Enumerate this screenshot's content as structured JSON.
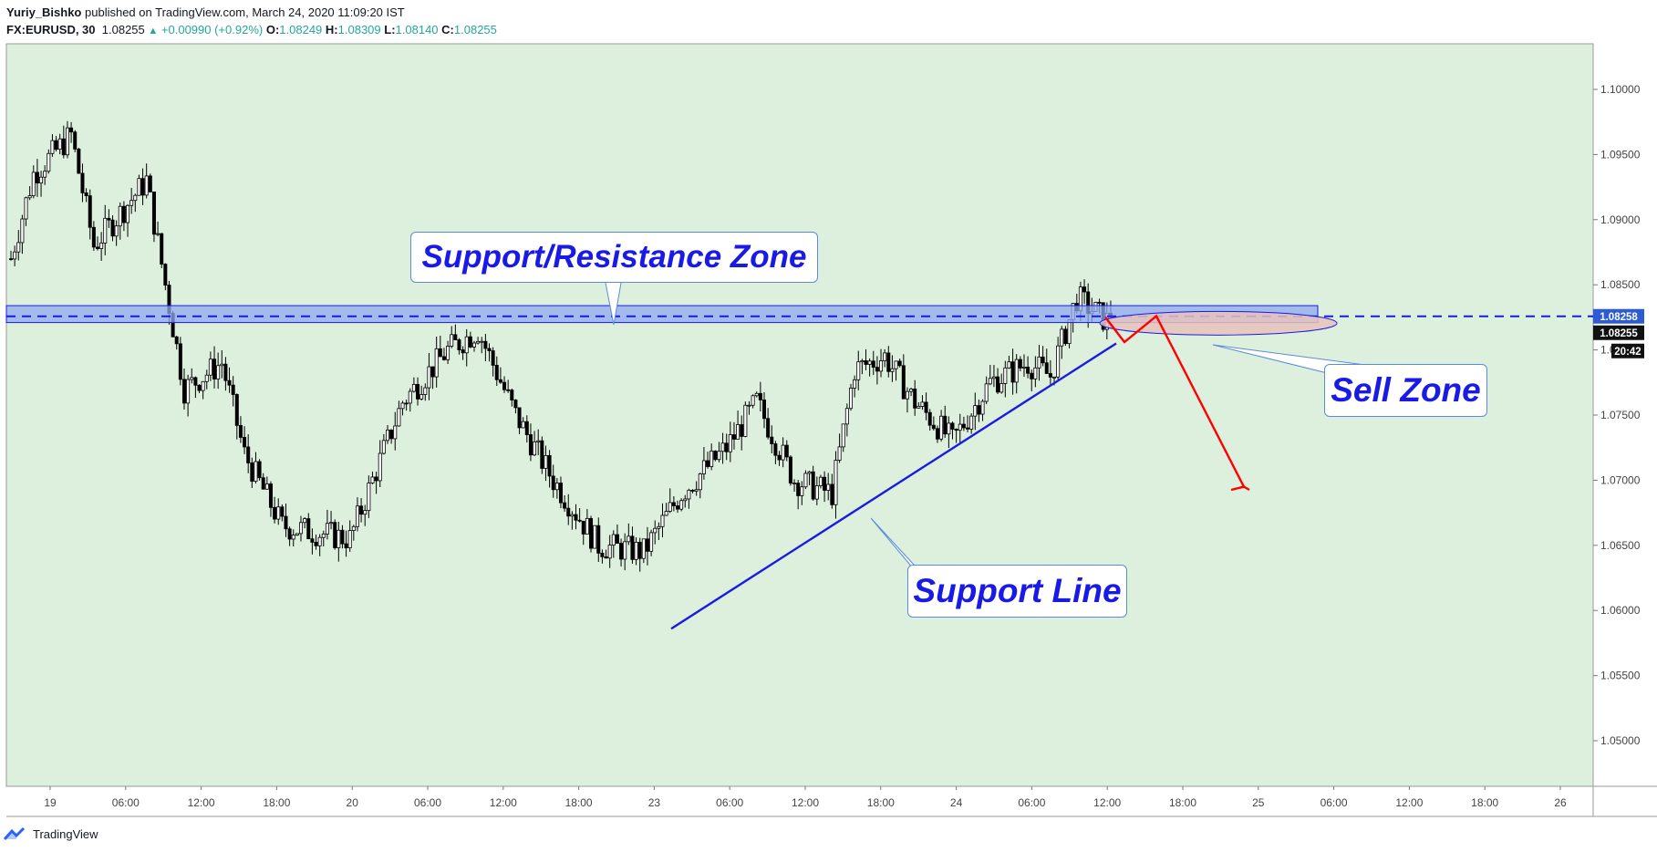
{
  "header": {
    "author": "Yuriy_Bishko",
    "published_text": "published on TradingView.com, March 24, 2020 11:09:20 IST",
    "symbol": "FX:EURUSD, 30",
    "price": "1.08255",
    "change_icon": "up-triangle-icon",
    "change": "+0.00990 (+0.92%)",
    "o_label": "O:",
    "o_value": "1.08249",
    "h_label": "H:",
    "h_value": "1.08309",
    "l_label": "L:",
    "l_value": "1.08140",
    "c_label": "C:",
    "c_value": "1.08255"
  },
  "annotations": {
    "sr_zone": "Support/Resistance Zone",
    "sell_zone": "Sell Zone",
    "support_line": "Support Line"
  },
  "price_tags": {
    "level": "1.08258",
    "last": "1.08255",
    "countdown": "20:42"
  },
  "footer": {
    "brand": "TradingView",
    "logo_icon": "tradingview-logo-icon"
  },
  "colors": {
    "background": "#ddf0dd",
    "sr_zone_fill": "#8fa8f0",
    "sr_zone_line": "#1a1ae6",
    "support_line": "#1a1ae6",
    "sell_zone_fill": "#e8c2bc",
    "arrow": "#ff0000",
    "candle_up": "#ffffff",
    "candle_down": "#000000"
  },
  "chart_data": {
    "type": "candlestick",
    "ylim": [
      1.0465,
      1.1035
    ],
    "y_ticks": [
      "1.10000",
      "1.09500",
      "1.09000",
      "1.08500",
      "1.08000",
      "1.07500",
      "1.07000",
      "1.06500",
      "1.06000",
      "1.05500",
      "1.05000"
    ],
    "x_ticks": [
      "19",
      "06:00",
      "12:00",
      "18:00",
      "20",
      "06:00",
      "12:00",
      "18:00",
      "23",
      "06:00",
      "12:00",
      "18:00",
      "24",
      "06:00",
      "12:00",
      "18:00",
      "25",
      "06:00",
      "12:00",
      "18:00",
      "26"
    ],
    "sr_zone": [
      1.0821,
      1.0834
    ],
    "sr_midline": 1.08258,
    "support_line": [
      [
        1.0586
      ],
      [
        1.0805
      ]
    ],
    "sell_zone_center": 1.08205,
    "projection": [
      1.08252,
      1.0806,
      1.0826,
      1.0695
    ],
    "candle_path": [
      [
        0,
        1.087
      ],
      [
        6,
        1.0935
      ],
      [
        16,
        1.0965
      ],
      [
        22,
        1.088
      ],
      [
        36,
        1.093
      ],
      [
        46,
        1.077
      ],
      [
        56,
        1.079
      ],
      [
        62,
        1.072
      ],
      [
        72,
        1.0665
      ],
      [
        90,
        1.0655
      ],
      [
        104,
        1.076
      ],
      [
        116,
        1.08
      ],
      [
        124,
        1.0815
      ],
      [
        134,
        1.075
      ],
      [
        144,
        1.07
      ],
      [
        156,
        1.065
      ],
      [
        168,
        1.0645
      ],
      [
        178,
        1.069
      ],
      [
        190,
        1.0725
      ],
      [
        198,
        1.076
      ],
      [
        208,
        1.07
      ],
      [
        218,
        1.069
      ],
      [
        224,
        1.0785
      ],
      [
        232,
        1.0795
      ],
      [
        240,
        1.076
      ],
      [
        250,
        1.073
      ],
      [
        260,
        1.0775
      ],
      [
        270,
        1.079
      ],
      [
        276,
        1.078
      ],
      [
        283,
        1.084
      ],
      [
        292,
        1.082
      ]
    ],
    "last_price": 1.08255
  }
}
